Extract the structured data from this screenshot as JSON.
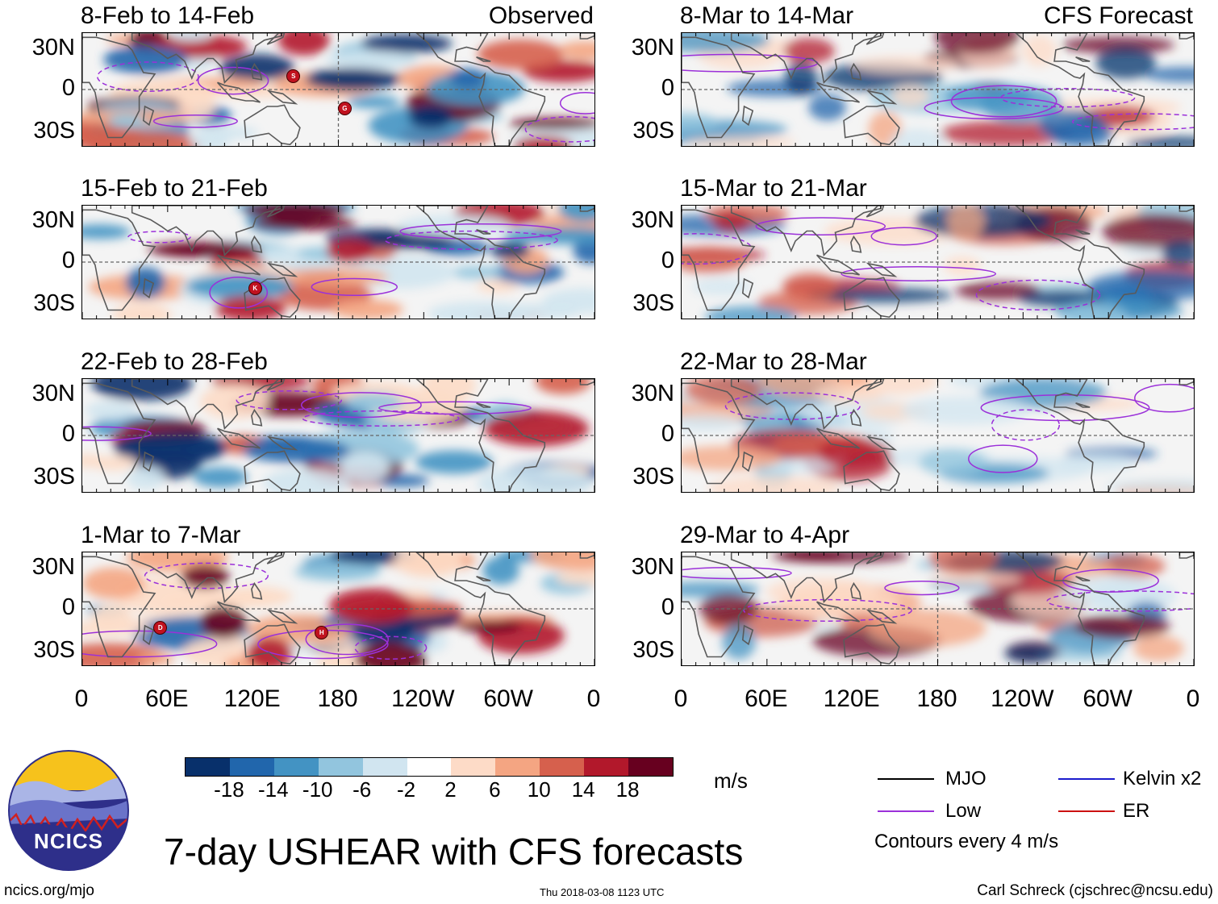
{
  "colors": {
    "mjo": "#000000",
    "low": "#9b30d9",
    "kelvin": "#1a1acd",
    "er": "#cc1111",
    "continent": "#5a5a5a",
    "equator": "#666666"
  },
  "panels_left": [
    {
      "title": "8-Feb to 14-Feb",
      "tag": "Observed",
      "storms": [
        "S",
        "G"
      ]
    },
    {
      "title": "15-Feb to 21-Feb",
      "tag": "",
      "storms": [
        "K"
      ]
    },
    {
      "title": "22-Feb to 28-Feb",
      "tag": "",
      "storms": []
    },
    {
      "title": "1-Mar to 7-Mar",
      "tag": "",
      "storms": [
        "D",
        "H"
      ]
    }
  ],
  "panels_right": [
    {
      "title": "8-Mar to 14-Mar",
      "tag": "CFS Forecast"
    },
    {
      "title": "15-Mar to 21-Mar",
      "tag": ""
    },
    {
      "title": "22-Mar to 28-Mar",
      "tag": ""
    },
    {
      "title": "29-Mar to 4-Apr",
      "tag": ""
    }
  ],
  "lat_labels": [
    "30N",
    "0",
    "30S"
  ],
  "lon_labels": [
    "0",
    "60E",
    "120E",
    "180",
    "120W",
    "60W",
    "0"
  ],
  "colorbar": {
    "colors": [
      "#08306b",
      "#2166ac",
      "#4393c3",
      "#92c5de",
      "#d1e5f0",
      "#ffffff",
      "#fddbc7",
      "#f4a582",
      "#d6604d",
      "#b2182b",
      "#67001f"
    ],
    "labels": [
      "-18",
      "-14",
      "-10",
      "-6",
      "-2",
      "2",
      "6",
      "10",
      "14",
      "18"
    ],
    "units": "m/s"
  },
  "legend": {
    "mjo": "MJO",
    "kelvin": "Kelvin x2",
    "low": "Low",
    "er": "ER",
    "contours": "Contours every 4 m/s"
  },
  "logo": {
    "text": "NCICS"
  },
  "main_title": "7-day USHEAR with CFS forecasts",
  "footer": {
    "url": "ncics.org/mjo",
    "timestamp": "Thu 2018-03-08 1123 UTC",
    "author": "Carl Schreck (cjschrec@ncsu.edu)"
  }
}
